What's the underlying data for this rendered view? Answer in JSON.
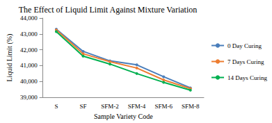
{
  "chart_data": {
    "type": "line",
    "title": "The Effect of Liquid Limit Against Mixture Variation",
    "x_label": "Sample Variety Code",
    "y_label": "Liquid Limit (%)",
    "categories": [
      "S",
      "SF",
      "SFM-2",
      "SFM-4",
      "SFM-6",
      "SFM-8"
    ],
    "series": [
      {
        "name": "0 Day Curing",
        "color": "#4a7ebb",
        "values": [
          43.3,
          41.9,
          41.3,
          41.05,
          40.3,
          39.6
        ]
      },
      {
        "name": "7 Days Curing",
        "color": "#ed7d31",
        "values": [
          43.25,
          41.75,
          41.25,
          40.85,
          40.1,
          39.55
        ]
      },
      {
        "name": "14 Days Curing",
        "color": "#00b050",
        "values": [
          43.15,
          41.6,
          41.1,
          40.5,
          39.95,
          39.45
        ]
      }
    ],
    "ylim": [
      39,
      44
    ],
    "yticks": [
      {
        "value": 39,
        "label": "39,000"
      },
      {
        "value": 40,
        "label": "40,000"
      },
      {
        "value": 41,
        "label": "41,000"
      },
      {
        "value": 42,
        "label": "42,000"
      },
      {
        "value": 43,
        "label": "43,000"
      },
      {
        "value": 44,
        "label": "44,000"
      }
    ],
    "grid": false,
    "legend": "right",
    "marker": "circle"
  }
}
